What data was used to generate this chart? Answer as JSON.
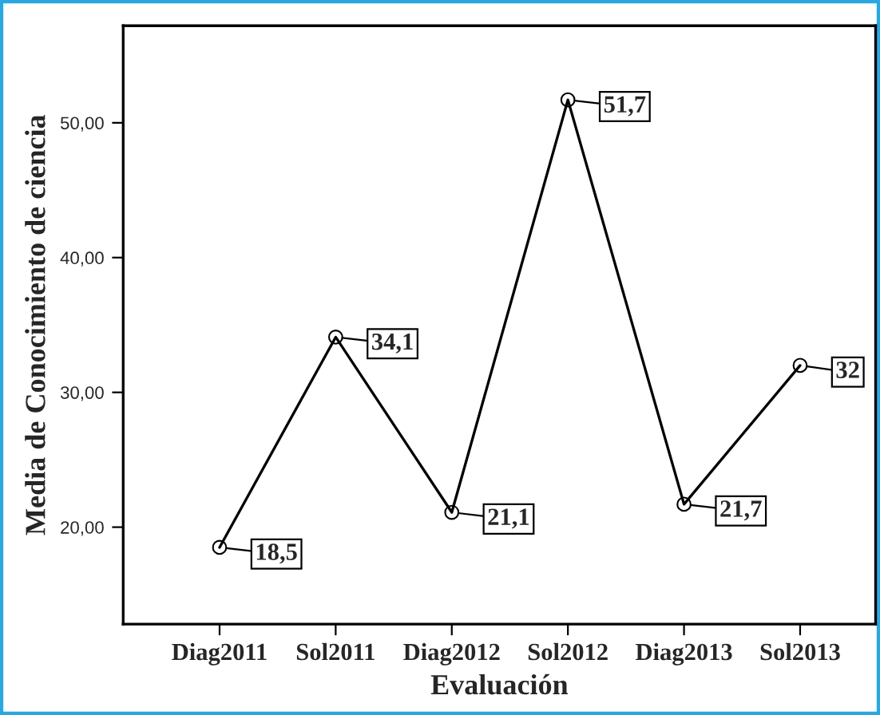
{
  "chart_data": {
    "type": "line",
    "xlabel": "Evaluación",
    "ylabel": "Media de Conocimiento de ciencia",
    "categories": [
      "Diag2011",
      "Sol2011",
      "Diag2012",
      "Sol2012",
      "Diag2013",
      "Sol2013"
    ],
    "series": [
      {
        "color": "#000000",
        "values": [
          18.5,
          34.1,
          21.1,
          51.7,
          21.7,
          32
        ],
        "value_labels": [
          "18,5",
          "34,1",
          "21,1",
          "51,7",
          "21,7",
          "32"
        ]
      }
    ],
    "ylim": [
      12.8,
      57.2
    ],
    "yticks": [
      {
        "value": 20,
        "label": "20,00"
      },
      {
        "value": 30,
        "label": "30,00"
      },
      {
        "value": 40,
        "label": "40,00"
      },
      {
        "value": 50,
        "label": "50,00"
      }
    ],
    "marker": "circle",
    "line_style": "solid"
  }
}
